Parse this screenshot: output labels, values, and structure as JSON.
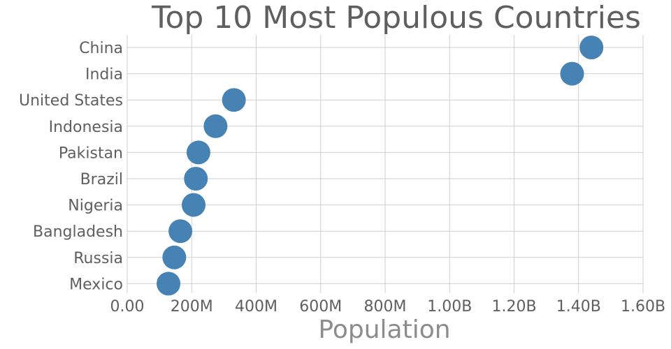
{
  "chart_data": {
    "type": "scatter",
    "title": "Top 10 Most Populous Countries",
    "xlabel": "Population",
    "ylabel": "",
    "xlim": [
      0,
      1600000000
    ],
    "x_ticks": [
      0,
      200000000,
      400000000,
      600000000,
      800000000,
      1000000000,
      1200000000,
      1400000000,
      1600000000
    ],
    "x_tick_labels": [
      "0.00",
      "200M",
      "400M",
      "600M",
      "800M",
      "1.00B",
      "1.20B",
      "1.40B",
      "1.60B"
    ],
    "categories": [
      "China",
      "India",
      "United States",
      "Indonesia",
      "Pakistan",
      "Brazil",
      "Nigeria",
      "Bangladesh",
      "Russia",
      "Mexico"
    ],
    "values": [
      1440000000,
      1380000000,
      331000000,
      274000000,
      221000000,
      213000000,
      206000000,
      165000000,
      146000000,
      128000000
    ],
    "grid": true,
    "colors": {
      "marker": "#4682b4",
      "grid": "#cfcfcf",
      "text": "#5f5f5f",
      "xlabel": "#8c8c8c"
    }
  }
}
